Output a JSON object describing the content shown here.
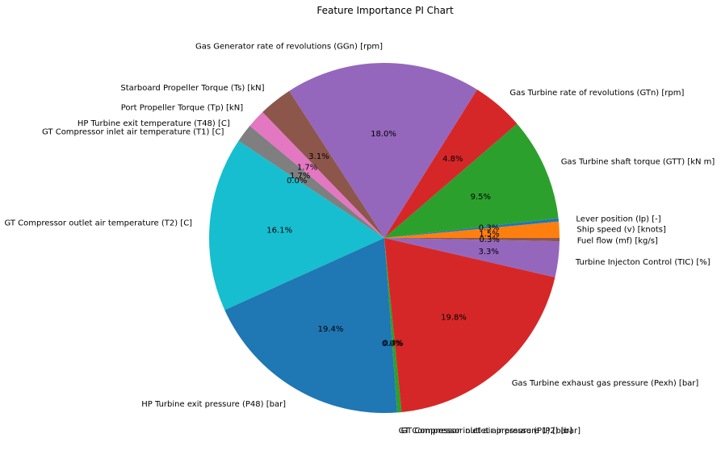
{
  "chart_data": {
    "type": "pie",
    "title": "Feature Importance PI Chart",
    "start_angle_deg": 0,
    "direction": "counterclockwise",
    "slices": [
      {
        "label": "Ship speed (v) [knots]",
        "value": 1.5,
        "pct_label": "1.5%",
        "color": "#ff7f0e"
      },
      {
        "label": "Lever position (lp) [-]",
        "value": 0.3,
        "pct_label": "0.3%",
        "color": "#1f77b4"
      },
      {
        "label": "Gas Turbine shaft torque (GTT) [kN m]",
        "value": 9.5,
        "pct_label": "9.5%",
        "color": "#2ca02c"
      },
      {
        "label": "Gas Turbine rate of revolutions (GTn) [rpm]",
        "value": 4.8,
        "pct_label": "4.8%",
        "color": "#d62728"
      },
      {
        "label": "Gas Generator rate of revolutions (GGn) [rpm]",
        "value": 18.0,
        "pct_label": "18.0%",
        "color": "#9467bd"
      },
      {
        "label": "Starboard Propeller Torque (Ts) [kN]",
        "value": 3.1,
        "pct_label": "3.1%",
        "color": "#8c564b"
      },
      {
        "label": "Port Propeller Torque (Tp) [kN]",
        "value": 1.7,
        "pct_label": "1.7%",
        "color": "#e377c2"
      },
      {
        "label": "HP Turbine exit temperature (T48) [C]",
        "value": 1.7,
        "pct_label": "1.7%",
        "color": "#7f7f7f"
      },
      {
        "label": "GT Compressor inlet air temperature (T1) [C]",
        "value": 0.0,
        "pct_label": "0.0%",
        "color": "#bcbd22"
      },
      {
        "label": "GT Compressor outlet air temperature (T2) [C]",
        "value": 16.1,
        "pct_label": "16.1%",
        "color": "#17becf"
      },
      {
        "label": "HP Turbine exit pressure (P48) [bar]",
        "value": 19.4,
        "pct_label": "19.4%",
        "color": "#1f77b4"
      },
      {
        "label": "GT Compressor inlet air pressure (P1) [bar]",
        "value": 0.0,
        "pct_label": "0.0%",
        "color": "#ff7f0e"
      },
      {
        "label": "GT Compressor outlet air pressure (P2) [bar]",
        "value": 0.4,
        "pct_label": "0.4%",
        "color": "#2ca02c"
      },
      {
        "label": "Gas Turbine exhaust gas pressure (Pexh) [bar]",
        "value": 19.8,
        "pct_label": "19.8%",
        "color": "#d62728"
      },
      {
        "label": "Turbine Injecton Control (TIC) [%]",
        "value": 3.3,
        "pct_label": "3.3%",
        "color": "#9467bd"
      },
      {
        "label": "Fuel flow (mf) [kg/s]",
        "value": 0.3,
        "pct_label": "0.3%",
        "color": "#8c564b"
      }
    ]
  }
}
